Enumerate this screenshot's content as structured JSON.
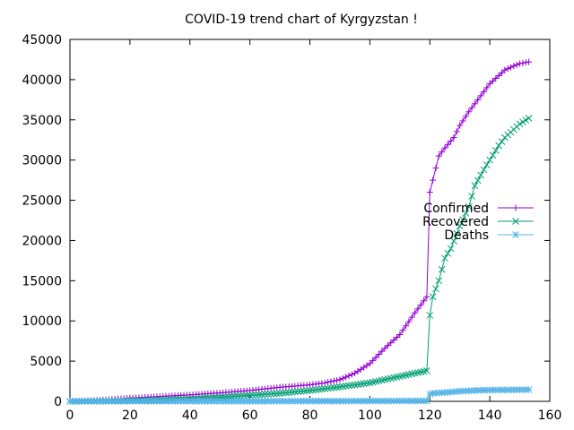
{
  "chart_data": {
    "type": "line",
    "title": "COVID-19 trend chart of Kyrgyzstan !",
    "xlabel": "",
    "ylabel": "",
    "xlim": [
      0,
      160
    ],
    "ylim": [
      0,
      45000
    ],
    "xticks": [
      "0",
      "20",
      "40",
      "60",
      "80",
      "100",
      "120",
      "140",
      "160"
    ],
    "yticks": [
      "0",
      "5000",
      "10000",
      "15000",
      "20000",
      "25000",
      "30000",
      "35000",
      "40000",
      "45000"
    ],
    "grid": false,
    "legend_position": "right",
    "series": [
      {
        "name": "Confirmed",
        "color": "#9400d3",
        "marker": "plus",
        "x": [
          0,
          10,
          20,
          30,
          40,
          50,
          60,
          70,
          80,
          85,
          90,
          95,
          100,
          105,
          110,
          115,
          119,
          120,
          121,
          123,
          125,
          128,
          130,
          133,
          135,
          138,
          140,
          143,
          145,
          148,
          150,
          153
        ],
        "values": [
          0,
          150,
          400,
          600,
          800,
          1050,
          1350,
          1750,
          2050,
          2300,
          2700,
          3500,
          4700,
          6600,
          8300,
          11000,
          13000,
          26000,
          27500,
          30500,
          31500,
          32800,
          34300,
          36000,
          37000,
          38500,
          39500,
          40500,
          41200,
          41700,
          42000,
          42200
        ]
      },
      {
        "name": "Recovered",
        "color": "#009e73",
        "marker": "cross",
        "x": [
          0,
          10,
          20,
          30,
          40,
          50,
          60,
          70,
          80,
          90,
          100,
          110,
          119,
          120,
          121,
          123,
          125,
          127,
          130,
          133,
          135,
          138,
          140,
          143,
          145,
          148,
          150,
          153
        ],
        "values": [
          0,
          20,
          70,
          150,
          300,
          500,
          750,
          1000,
          1350,
          1800,
          2300,
          3100,
          3800,
          10700,
          13000,
          15000,
          17800,
          19000,
          21800,
          24200,
          26800,
          28800,
          30000,
          31800,
          32800,
          33800,
          34500,
          35200
        ]
      },
      {
        "name": "Deaths",
        "color": "#56b4e9",
        "marker": "star",
        "x": [
          0,
          20,
          40,
          60,
          80,
          100,
          110,
          119,
          120,
          121,
          125,
          130,
          135,
          140,
          145,
          150,
          153
        ],
        "values": [
          0,
          5,
          10,
          15,
          25,
          40,
          50,
          60,
          900,
          1000,
          1100,
          1250,
          1350,
          1400,
          1420,
          1440,
          1450
        ]
      }
    ]
  }
}
